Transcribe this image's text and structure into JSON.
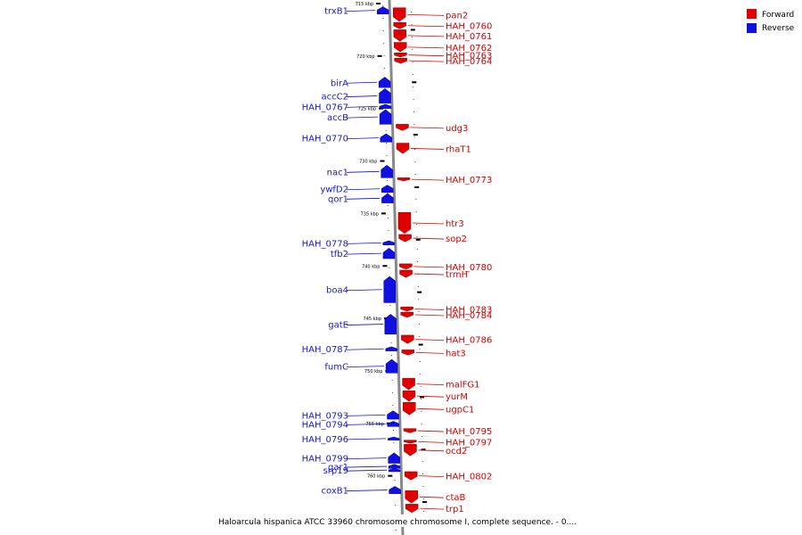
{
  "legend": {
    "forward_label": "Forward",
    "reverse_label": "Reverse",
    "forward_color": "#e00000",
    "reverse_color": "#1010e0"
  },
  "caption": "Haloarcula hispanica ATCC 33960 chromosome chromosome I, complete sequence. - 0....",
  "ticks": [
    {
      "kbp": 715,
      "label": "715 kbp"
    },
    {
      "kbp": 720,
      "label": "720 kbp"
    },
    {
      "kbp": 725,
      "label": "725 kbp"
    },
    {
      "kbp": 730,
      "label": "730 kbp"
    },
    {
      "kbp": 735,
      "label": "735 kbp"
    },
    {
      "kbp": 740,
      "label": "740 kbp"
    },
    {
      "kbp": 745,
      "label": "745 kbp"
    },
    {
      "kbp": 750,
      "label": "750 kbp"
    },
    {
      "kbp": 755,
      "label": "755 kbp"
    },
    {
      "kbp": 760,
      "label": "760 kbp"
    }
  ],
  "reverse_genes": [
    {
      "name": "trxB1",
      "start": 715.3,
      "end": 716.0
    },
    {
      "name": "birA",
      "start": 722.0,
      "end": 723.0
    },
    {
      "name": "accC2",
      "start": 723.1,
      "end": 724.5
    },
    {
      "name": "HAH_0767",
      "start": 724.6,
      "end": 725.0
    },
    {
      "name": "accB",
      "start": 725.1,
      "end": 726.5
    },
    {
      "name": "HAH_0770",
      "start": 727.4,
      "end": 728.2
    },
    {
      "name": "nac1",
      "start": 730.4,
      "end": 731.6
    },
    {
      "name": "ywfD2",
      "start": 732.3,
      "end": 733.0
    },
    {
      "name": "qor1",
      "start": 733.1,
      "end": 734.0
    },
    {
      "name": "HAH_0778",
      "start": 737.6,
      "end": 738.0
    },
    {
      "name": "tfb2",
      "start": 738.3,
      "end": 739.3
    },
    {
      "name": "boa4",
      "start": 741.0,
      "end": 743.5
    },
    {
      "name": "gatE",
      "start": 744.6,
      "end": 746.5
    },
    {
      "name": "HAH_0787",
      "start": 747.7,
      "end": 748.1
    },
    {
      "name": "fumC",
      "start": 748.9,
      "end": 750.2
    },
    {
      "name": "HAH_0793",
      "start": 753.8,
      "end": 754.6
    },
    {
      "name": "HAH_0794",
      "start": 754.8,
      "end": 755.3
    },
    {
      "name": "HAH_0796",
      "start": 756.3,
      "end": 756.6
    },
    {
      "name": "HAH_0799",
      "start": 757.8,
      "end": 758.8
    },
    {
      "name": "gar1",
      "start": 758.9,
      "end": 759.3
    },
    {
      "name": "srp19",
      "start": 759.3,
      "end": 759.6
    },
    {
      "name": "coxB1",
      "start": 761.0,
      "end": 761.7
    }
  ],
  "forward_genes": [
    {
      "name": "pan2",
      "start": 715.4,
      "end": 716.7
    },
    {
      "name": "HAH_0760",
      "start": 716.8,
      "end": 717.4
    },
    {
      "name": "HAH_0761",
      "start": 717.5,
      "end": 718.6
    },
    {
      "name": "HAH_0762",
      "start": 718.7,
      "end": 719.6
    },
    {
      "name": "HAH_0763",
      "start": 719.7,
      "end": 720.1
    },
    {
      "name": "HAH_0764",
      "start": 720.2,
      "end": 720.7
    },
    {
      "name": "udg3",
      "start": 726.5,
      "end": 727.1
    },
    {
      "name": "rhaT1",
      "start": 728.3,
      "end": 729.3
    },
    {
      "name": "HAH_0773",
      "start": 731.6,
      "end": 731.9
    },
    {
      "name": "htr3",
      "start": 734.9,
      "end": 736.9
    },
    {
      "name": "sop2",
      "start": 737.0,
      "end": 737.7
    },
    {
      "name": "HAH_0780",
      "start": 739.8,
      "end": 740.3
    },
    {
      "name": "trmH",
      "start": 740.4,
      "end": 741.1
    },
    {
      "name": "HAH_0783",
      "start": 743.9,
      "end": 744.3
    },
    {
      "name": "HAH_0784",
      "start": 744.4,
      "end": 744.9
    },
    {
      "name": "HAH_0786",
      "start": 746.6,
      "end": 747.4
    },
    {
      "name": "hat3",
      "start": 748.0,
      "end": 748.5
    },
    {
      "name": "malFG1",
      "start": 750.7,
      "end": 751.8
    },
    {
      "name": "yurM",
      "start": 751.9,
      "end": 752.9
    },
    {
      "name": "ugpC1",
      "start": 753.0,
      "end": 754.2
    },
    {
      "name": "HAH_0795",
      "start": 755.5,
      "end": 755.9
    },
    {
      "name": "HAH_0797",
      "start": 756.6,
      "end": 756.9
    },
    {
      "name": "ocd2",
      "start": 757.0,
      "end": 758.1
    },
    {
      "name": "HAH_0802",
      "start": 759.6,
      "end": 760.4
    },
    {
      "name": "ctaB",
      "start": 761.4,
      "end": 762.6
    },
    {
      "name": "trp1",
      "start": 762.7,
      "end": 763.5
    }
  ]
}
